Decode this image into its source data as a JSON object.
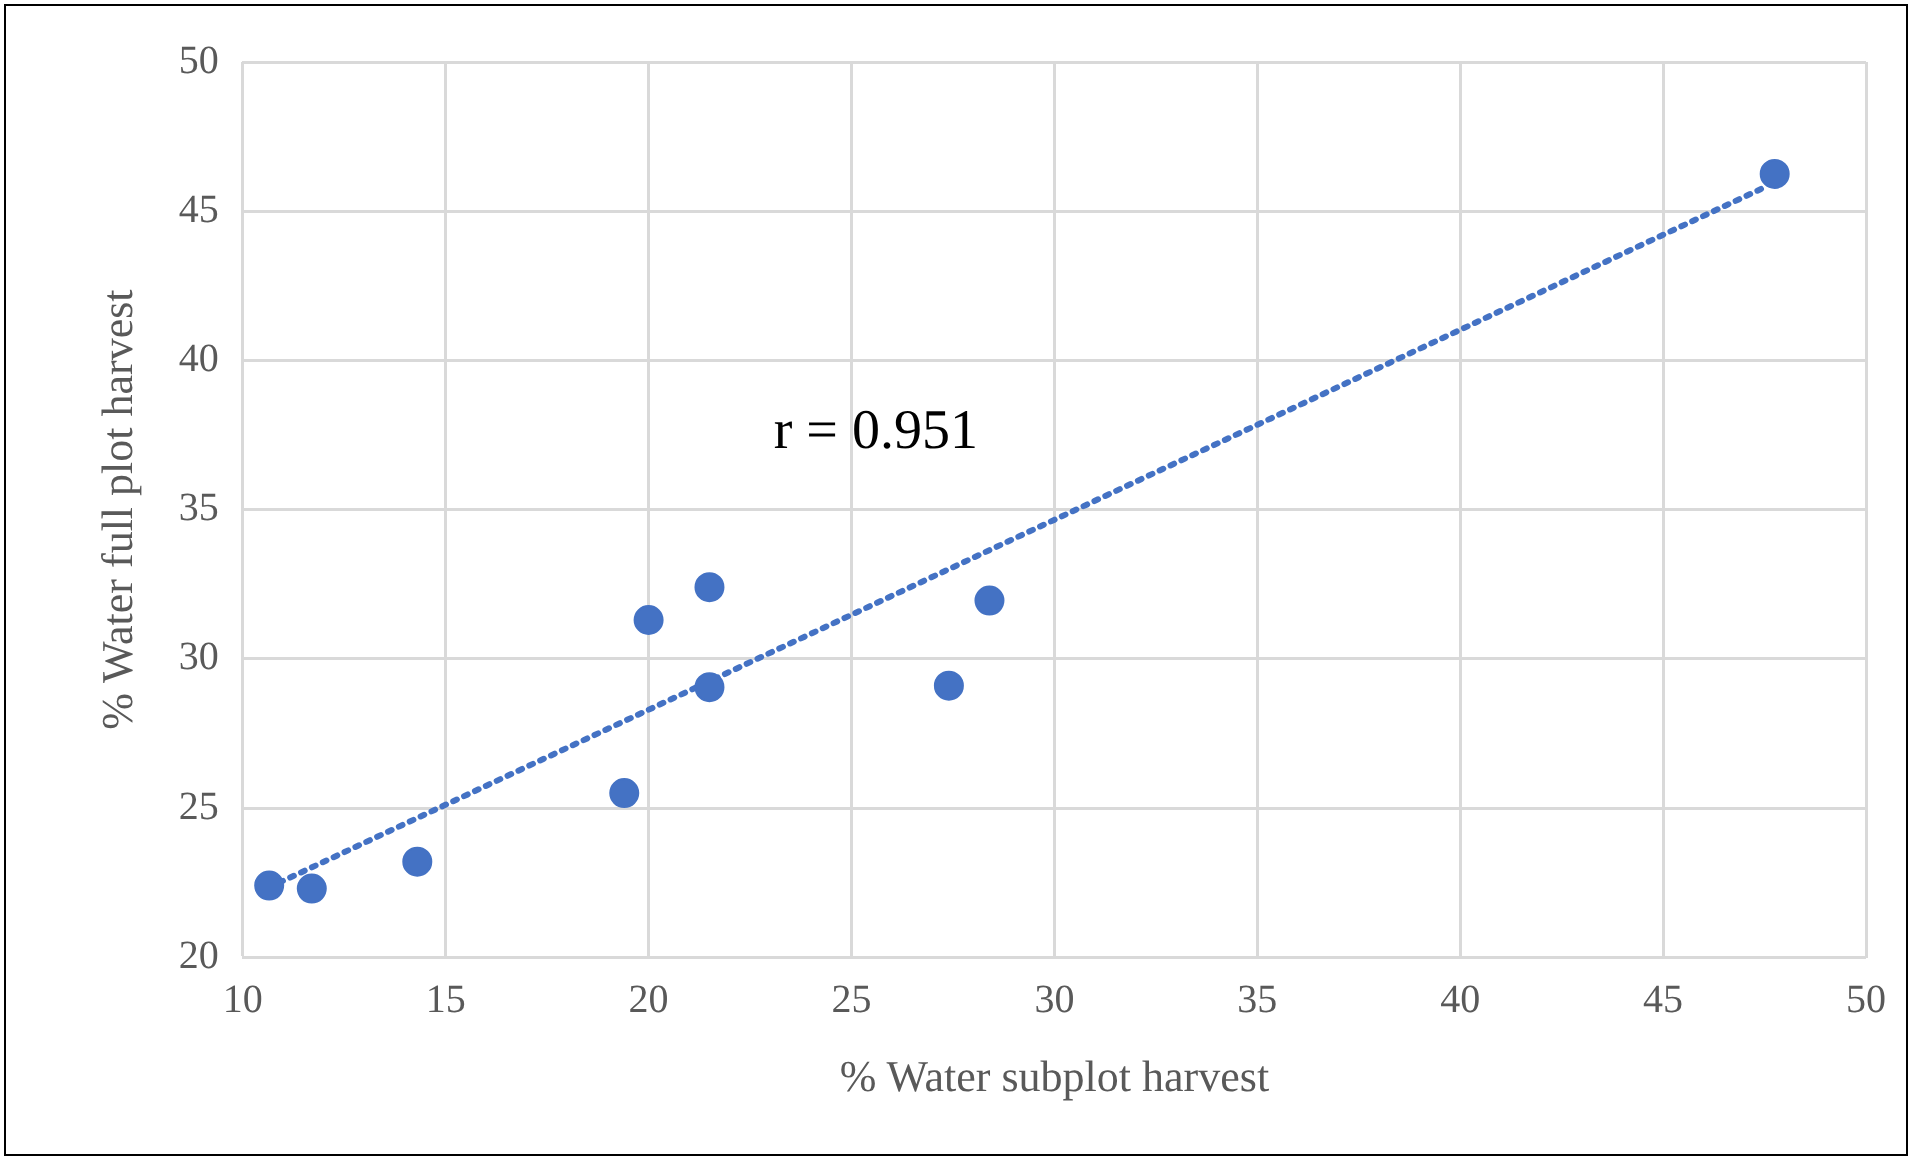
{
  "chart_data": {
    "type": "scatter",
    "xlabel": "% Water subplot harvest",
    "ylabel": "% Water full plot harvest",
    "annotations": [
      "r = 0.951"
    ],
    "xlim": [
      10,
      50
    ],
    "xticks": [
      10,
      15,
      20,
      25,
      30,
      35,
      40,
      45,
      50
    ],
    "ylim": [
      20,
      50
    ],
    "yticks": [
      20,
      25,
      30,
      35,
      40,
      45,
      50
    ],
    "grid": true,
    "legend": false,
    "marker": "circle",
    "series": [
      {
        "type": "scatter",
        "color": "#4472c4",
        "x": [
          10.65,
          11.7,
          14.3,
          19.4,
          20.0,
          21.5,
          21.5,
          27.4,
          28.4,
          47.75
        ],
        "values": [
          22.4,
          22.3,
          23.2,
          25.5,
          31.3,
          29.05,
          32.4,
          29.1,
          31.95,
          46.25
        ]
      },
      {
        "type": "line",
        "color": "#4472c4",
        "line_style": "dotted",
        "marker": "none",
        "x": [
          10.9,
          47.5
        ],
        "values": [
          22.5,
          45.8
        ]
      }
    ]
  }
}
